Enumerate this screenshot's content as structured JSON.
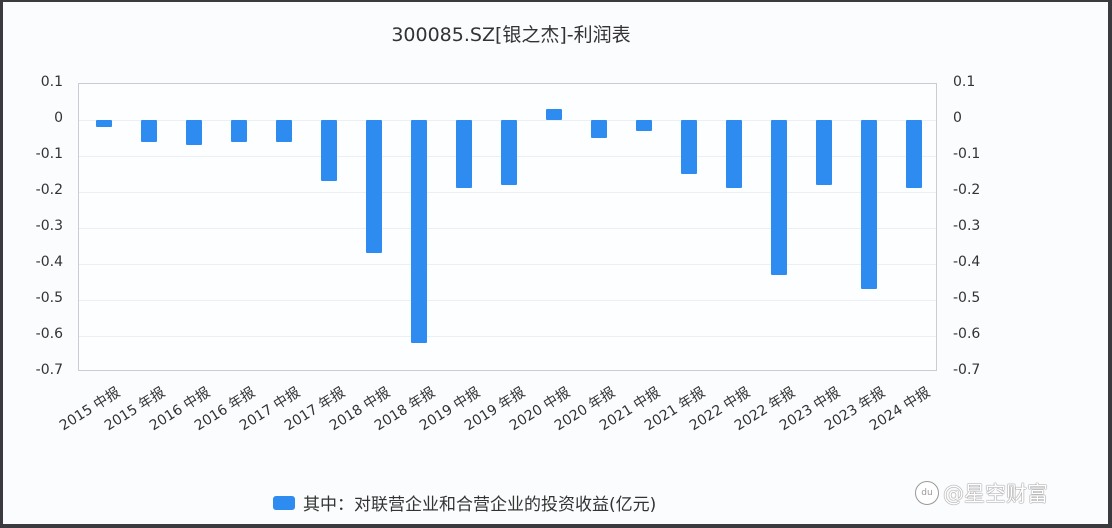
{
  "chart_data": {
    "type": "bar",
    "title": "300085.SZ[银之杰]-利润表",
    "xlabel": "",
    "ylabel": "",
    "ylim": [
      -0.7,
      0.1
    ],
    "yticks": [
      "0.1",
      "0",
      "-0.1",
      "-0.2",
      "-0.3",
      "-0.4",
      "-0.5",
      "-0.6",
      "-0.7"
    ],
    "dual_y_axis": true,
    "grid": true,
    "legend_position": "bottom",
    "categories": [
      "2015 中报",
      "2015 年报",
      "2016 中报",
      "2016 年报",
      "2017 中报",
      "2017 年报",
      "2018 中报",
      "2018 年报",
      "2019 中报",
      "2019 年报",
      "2020 中报",
      "2020 年报",
      "2021 中报",
      "2021 年报",
      "2022 中报",
      "2022 年报",
      "2023 中报",
      "2023 年报",
      "2024 中报"
    ],
    "series": [
      {
        "name": "其中：对联营企业和合营企业的投资收益(亿元)",
        "color": "#2e8cf0",
        "values": [
          -0.02,
          -0.06,
          -0.07,
          -0.06,
          -0.06,
          -0.17,
          -0.37,
          -0.62,
          -0.19,
          -0.18,
          0.03,
          -0.05,
          -0.03,
          -0.15,
          -0.19,
          -0.43,
          -0.18,
          -0.47,
          -0.19
        ]
      }
    ]
  },
  "legend": {
    "label": "其中：对联营企业和合营企业的投资收益(亿元)"
  },
  "watermark": {
    "text": "@星空财富",
    "logo": "du"
  }
}
